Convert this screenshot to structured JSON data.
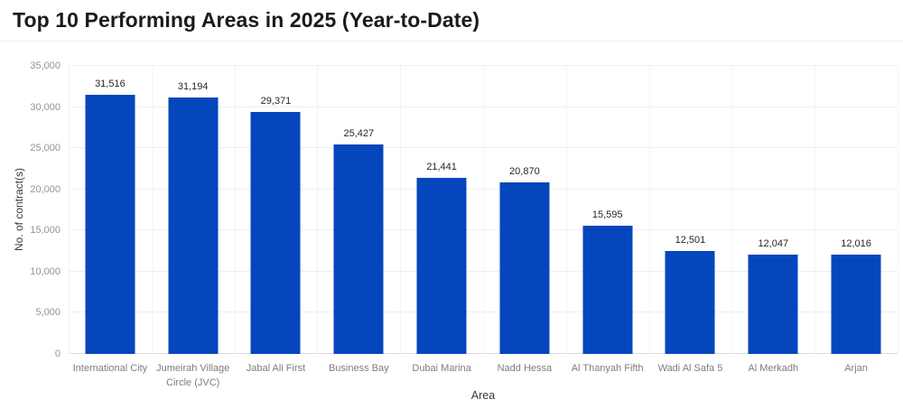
{
  "header": {
    "title": "Top 10 Performing Areas in 2025 (Year-to-Date)"
  },
  "chart_data": {
    "type": "bar",
    "title": "Top 10 Performing Areas in 2025 (Year-to-Date)",
    "xlabel": "Area",
    "ylabel": "No. of contract(s)",
    "ylim": [
      0,
      35000
    ],
    "grid": true,
    "legend": "none",
    "bar_color": "#0646bd",
    "categories": [
      "International City",
      "Jumeirah Village Circle (JVC)",
      "Jabal Ali First",
      "Business Bay",
      "Dubai Marina",
      "Nadd Hessa",
      "Al Thanyah Fifth",
      "Wadi Al Safa 5",
      "Al Merkadh",
      "Arjan"
    ],
    "values": [
      31516,
      31194,
      29371,
      25427,
      21441,
      20870,
      15595,
      12501,
      12047,
      12016
    ],
    "value_labels": [
      "31,516",
      "31,194",
      "29,371",
      "25,427",
      "21,441",
      "20,870",
      "15,595",
      "12,501",
      "12,047",
      "12,016"
    ],
    "yticks": [
      0,
      5000,
      10000,
      15000,
      20000,
      25000,
      30000,
      35000
    ],
    "ytick_labels": [
      "0",
      "5,000",
      "10,000",
      "15,000",
      "20,000",
      "25,000",
      "30,000",
      "35,000"
    ]
  }
}
